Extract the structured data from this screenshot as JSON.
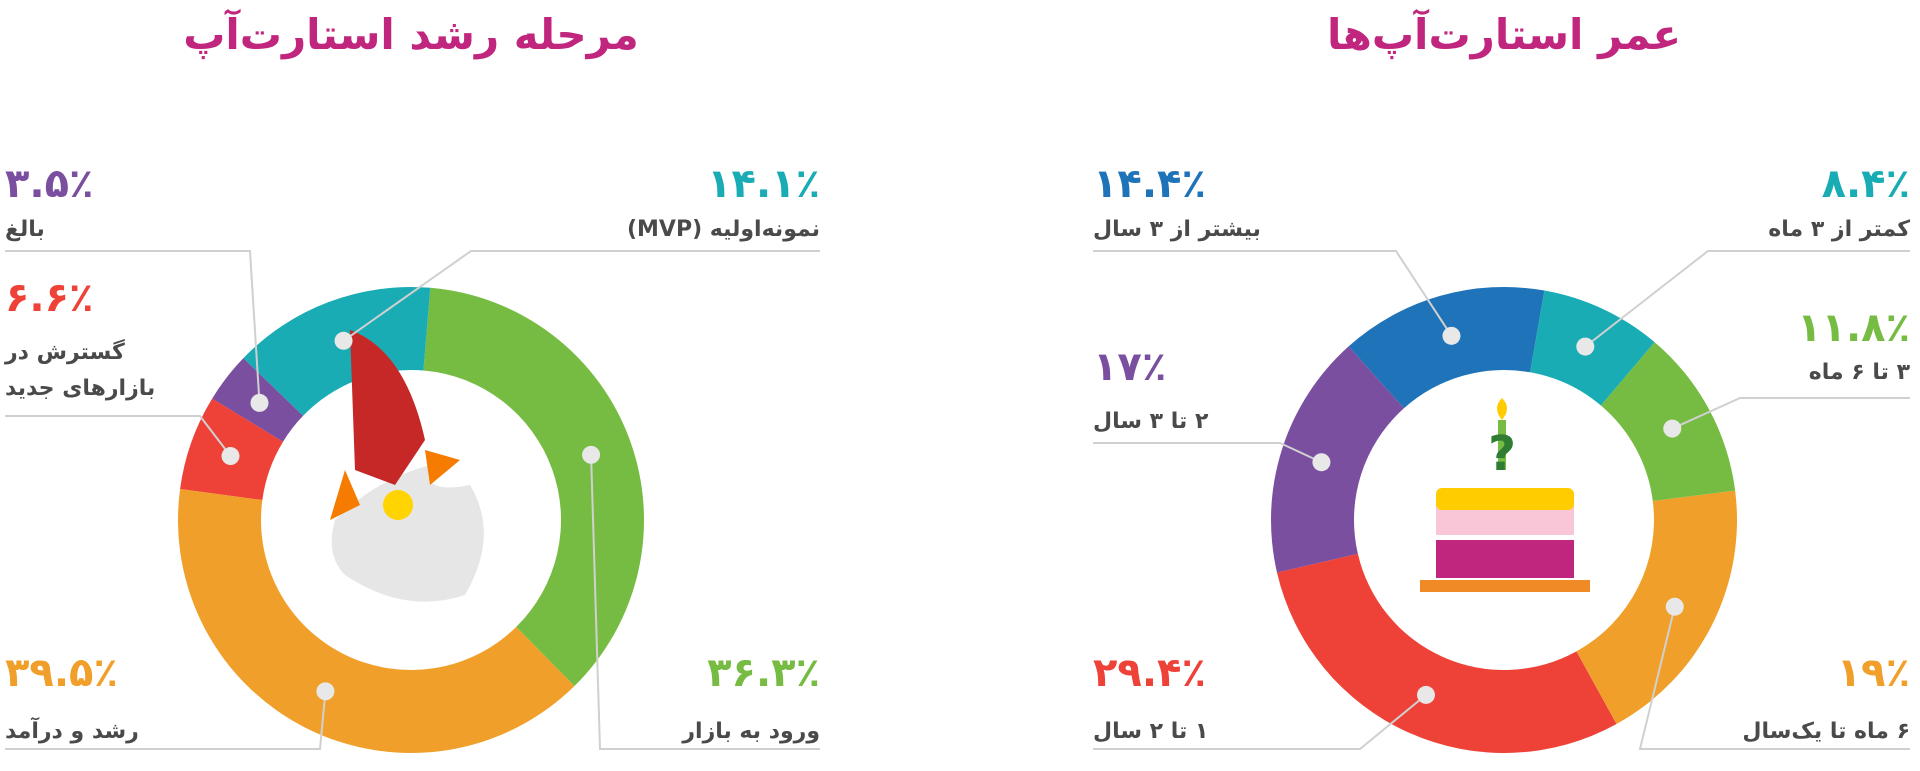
{
  "chart_data": [
    {
      "type": "donut",
      "title": "مرحله رشد استارت‌آپ",
      "categories": [
        "نمونه‌اولیه (MVP)",
        "ورود به بازار",
        "رشد و درآمد",
        "گسترش در بازارهای جدید",
        "بالغ"
      ],
      "values": [
        14.1,
        36.3,
        39.5,
        6.6,
        3.5
      ],
      "value_labels": [
        "۱۴.۱٪",
        "۳۶.۳٪",
        "۳۹.۵٪",
        "۶.۶٪",
        "۳.۵٪"
      ],
      "colors": [
        "#1aacb4",
        "#76bc43",
        "#f0a02a",
        "#ee4137",
        "#7b4fa0"
      ]
    },
    {
      "type": "donut",
      "title": "عمر استارت‌آپ‌ها",
      "categories": [
        "کمتر از ۳ ماه",
        "۳ تا ۶ ماه",
        "۶ ماه تا یک‌سال",
        "۱ تا ۲ سال",
        "۲ تا ۳ سال",
        "بیشتر از ۳ سال"
      ],
      "values": [
        8.4,
        11.8,
        19,
        29.4,
        17,
        14.4
      ],
      "value_labels": [
        "۸.۴٪",
        "۱۱.۸٪",
        "۱۹٪",
        "۲۹.۴٪",
        "۱۷٪",
        "۱۴.۴٪"
      ],
      "colors": [
        "#1aacb4",
        "#76bc43",
        "#f0a02a",
        "#ee4137",
        "#7b4fa0",
        "#1e73b9"
      ]
    }
  ]
}
